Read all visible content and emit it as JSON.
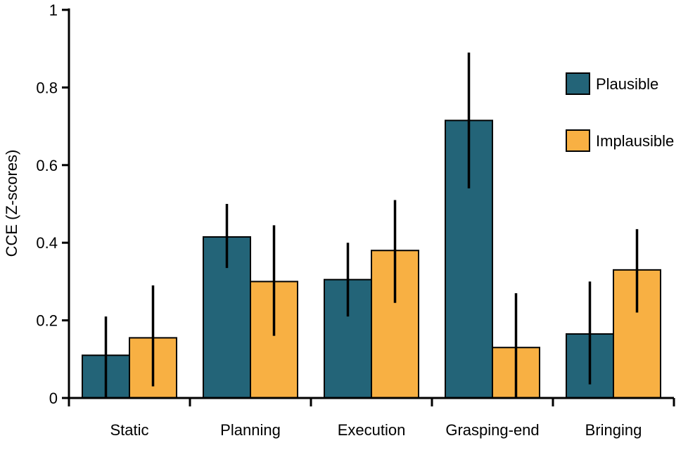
{
  "chart_data": {
    "type": "bar",
    "title": "",
    "xlabel": "",
    "ylabel": "CCE (Z-scores)",
    "ylim": [
      0,
      1
    ],
    "yticks": [
      0,
      0.2,
      0.4,
      0.6,
      0.8,
      1
    ],
    "ytick_labels": [
      "0",
      "0.2",
      "0.4",
      "0.6",
      "0.8",
      "1"
    ],
    "grid": false,
    "legend_position": "top-right",
    "categories": [
      "Static",
      "Planning",
      "Execution",
      "Grasping-end",
      "Bringing"
    ],
    "series": [
      {
        "name": "Plausible",
        "color": "#236478",
        "values": [
          0.11,
          0.415,
          0.305,
          0.715,
          0.165
        ],
        "error_low": [
          0.0,
          0.335,
          0.21,
          0.54,
          0.035
        ],
        "error_high": [
          0.21,
          0.5,
          0.4,
          0.89,
          0.3
        ]
      },
      {
        "name": "Implausible",
        "color": "#F8B043",
        "values": [
          0.155,
          0.3,
          0.38,
          0.13,
          0.33
        ],
        "error_low": [
          0.03,
          0.16,
          0.245,
          0.0,
          0.22
        ],
        "error_high": [
          0.29,
          0.445,
          0.51,
          0.27,
          0.435
        ]
      }
    ]
  }
}
